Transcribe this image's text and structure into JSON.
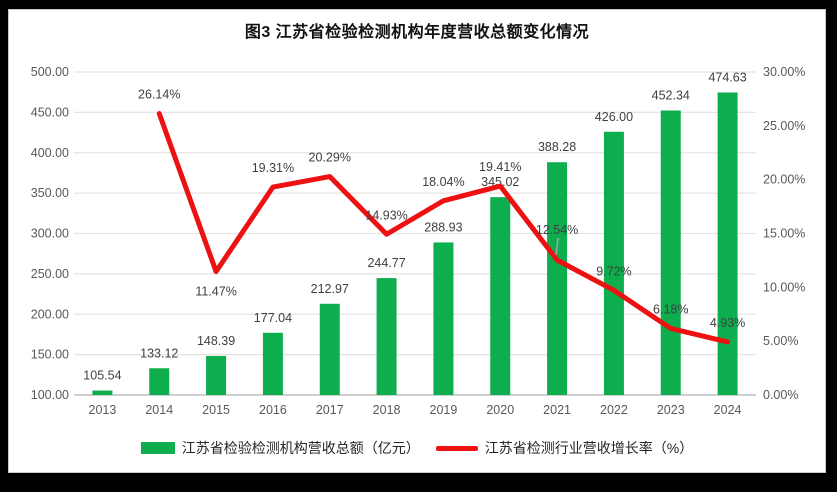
{
  "title": "图3  江苏省检验检测机构年度营收总额变化情况",
  "colors": {
    "bar": "#0EAE4E",
    "line": "#ED1111",
    "grid": "#E4E4E4",
    "axis_line": "#D0D0D0",
    "tick_text": "#595959",
    "data_label_text": "#404040",
    "leader_line": "#A6A6A6",
    "title_text": "#111111",
    "legend_text": "#262626",
    "chart_background": "#FFFFFF",
    "page_background": "#000000"
  },
  "chart_data": {
    "type": "bar+line combo",
    "title": "图3  江苏省检验检测机构年度营收总额变化情况",
    "categories": [
      "2013",
      "2014",
      "2015",
      "2016",
      "2017",
      "2018",
      "2019",
      "2020",
      "2021",
      "2022",
      "2023",
      "2024"
    ],
    "series": [
      {
        "name": "江苏省检验检测机构营收总额（亿元）",
        "type": "bar",
        "axis": "left",
        "values": [
          105.54,
          133.12,
          148.39,
          177.04,
          212.97,
          244.77,
          288.93,
          345.02,
          388.28,
          426.0,
          452.34,
          474.63
        ]
      },
      {
        "name": "江苏省检测行业营收增长率（%）",
        "type": "line",
        "axis": "right",
        "values": [
          null,
          26.14,
          11.47,
          19.31,
          20.29,
          14.93,
          18.04,
          19.41,
          12.54,
          9.72,
          6.18,
          4.93
        ]
      }
    ],
    "left_axis": {
      "min": 100,
      "max": 500,
      "step": 50,
      "tick_format": "two-decimals"
    },
    "right_axis": {
      "min": 0,
      "max": 30,
      "step": 5,
      "tick_format": "two-decimals-percent"
    },
    "grid": true,
    "data_labels": true,
    "legend_position": "bottom",
    "line_label_placement": [
      "none",
      "above",
      "below",
      "above",
      "above",
      "above",
      "above",
      "above",
      "above-leader",
      "above",
      "above",
      "above"
    ]
  }
}
